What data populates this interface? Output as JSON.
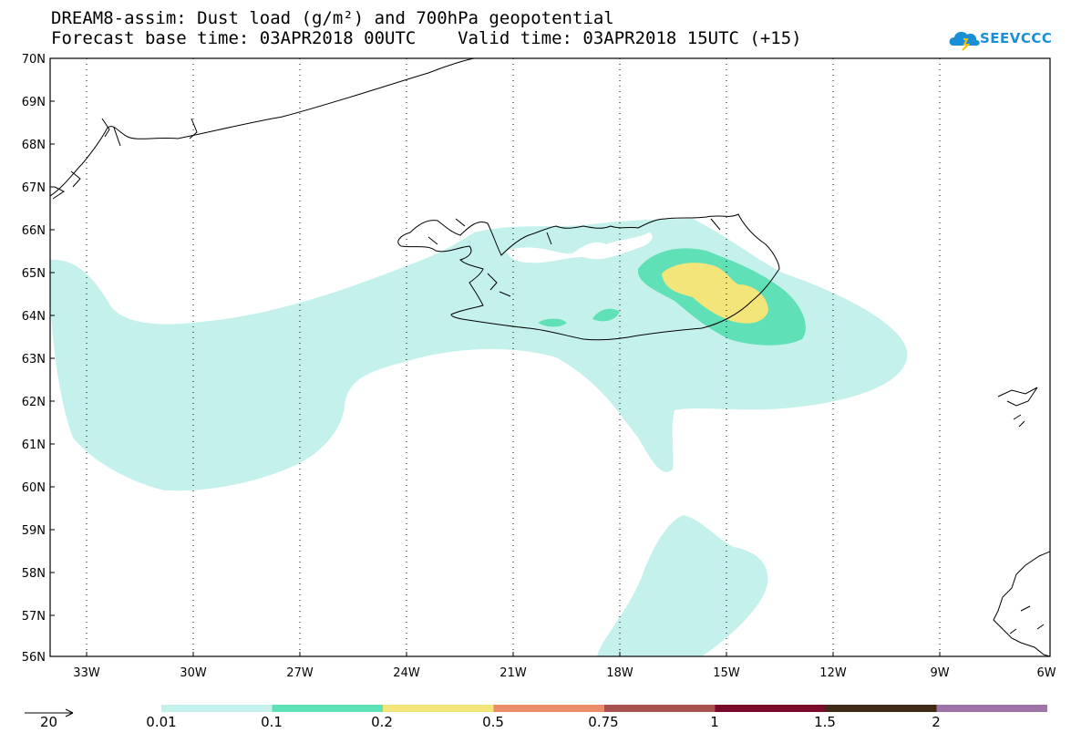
{
  "header": {
    "title_line1": "DREAM8-assim: Dust load (g/m²) and 700hPa geopotential",
    "title_line2": "Forecast base time: 03APR2018 00UTC    Valid time: 03APR2018 15UTC (+15)",
    "logo_text": "SEEVCCC"
  },
  "map": {
    "lat_labels": [
      "70N",
      "69N",
      "68N",
      "67N",
      "66N",
      "65N",
      "64N",
      "63N",
      "62N",
      "61N",
      "60N",
      "59N",
      "58N",
      "57N",
      "56N"
    ],
    "lon_labels": [
      "33W",
      "30W",
      "27W",
      "24W",
      "21W",
      "18W",
      "15W",
      "12W",
      "9W",
      "6W"
    ]
  },
  "legend": {
    "vector_label": "20",
    "colors": [
      "#c4f1ec",
      "#5fe0b7",
      "#f4e57b",
      "#e98d6b",
      "#a55250",
      "#7a0a2c",
      "#3d2914",
      "#9e73a8"
    ],
    "labels": [
      "0.01",
      "0.1",
      "0.2",
      "0.5",
      "0.75",
      "1",
      "1.5",
      "2"
    ]
  }
}
